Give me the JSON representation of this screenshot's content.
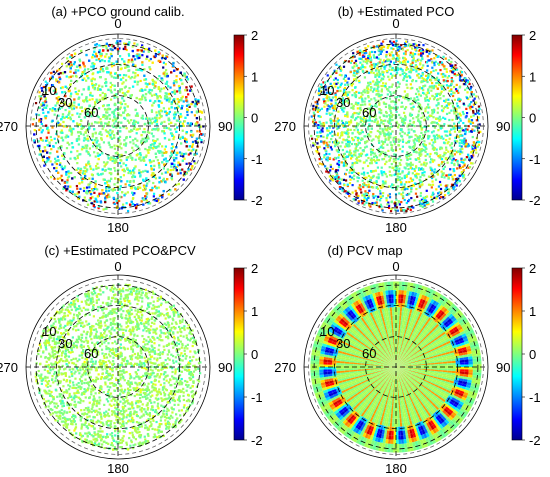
{
  "chart_data": [
    {
      "type": "heatmap",
      "title": "(a) +PCO ground calib.",
      "projection": "polar skyplot",
      "azimuth_ticks": [
        "0",
        "90",
        "180",
        "270"
      ],
      "elevation_ticks": [
        "10",
        "30",
        "60"
      ],
      "colorbar": {
        "range": [
          -2,
          2
        ],
        "ticks": [
          "2",
          "1",
          "0",
          "-1",
          "-2"
        ],
        "colormap": "jet"
      },
      "pattern": "dense residuals, mostly green/cyan near zenith, strong red/yellow and blue scatter at low elevation"
    },
    {
      "type": "heatmap",
      "title": "(b) +Estimated PCO",
      "projection": "polar skyplot",
      "azimuth_ticks": [
        "0",
        "90",
        "180",
        "270"
      ],
      "elevation_ticks": [
        "10",
        "30",
        "60"
      ],
      "colorbar": {
        "range": [
          -2,
          2
        ],
        "ticks": [
          "2",
          "1",
          "0",
          "-1",
          "-2"
        ],
        "colormap": "jet"
      },
      "pattern": "similar to (a), slightly reduced magnitudes"
    },
    {
      "type": "heatmap",
      "title": "(c) +Estimated PCO&PCV",
      "projection": "polar skyplot",
      "azimuth_ticks": [
        "0",
        "90",
        "180",
        "270"
      ],
      "elevation_ticks": [
        "10",
        "30",
        "60"
      ],
      "colorbar": {
        "range": [
          -2,
          2
        ],
        "ticks": [
          "2",
          "1",
          "0",
          "-1",
          "-2"
        ],
        "colormap": "jet"
      },
      "pattern": "residuals close to zero (green) over the whole sky"
    },
    {
      "type": "heatmap",
      "title": "(d) PCV map",
      "projection": "polar skyplot",
      "azimuth_ticks": [
        "0",
        "90",
        "180",
        "270"
      ],
      "elevation_ticks": [
        "10",
        "30",
        "60"
      ],
      "colorbar": {
        "range": [
          -2,
          2
        ],
        "ticks": [
          "2",
          "1",
          "0",
          "-1",
          "-2"
        ],
        "colormap": "jet"
      },
      "pattern": "green background with radial spokes; periodic red/blue lobes in a ring at low elevation"
    }
  ],
  "colors": {
    "jet_stops": [
      "#00008f",
      "#0000ff",
      "#00ffff",
      "#ffff00",
      "#ff0000",
      "#800000"
    ],
    "grid_line": "#000000",
    "dashed_ring": "#555555"
  }
}
